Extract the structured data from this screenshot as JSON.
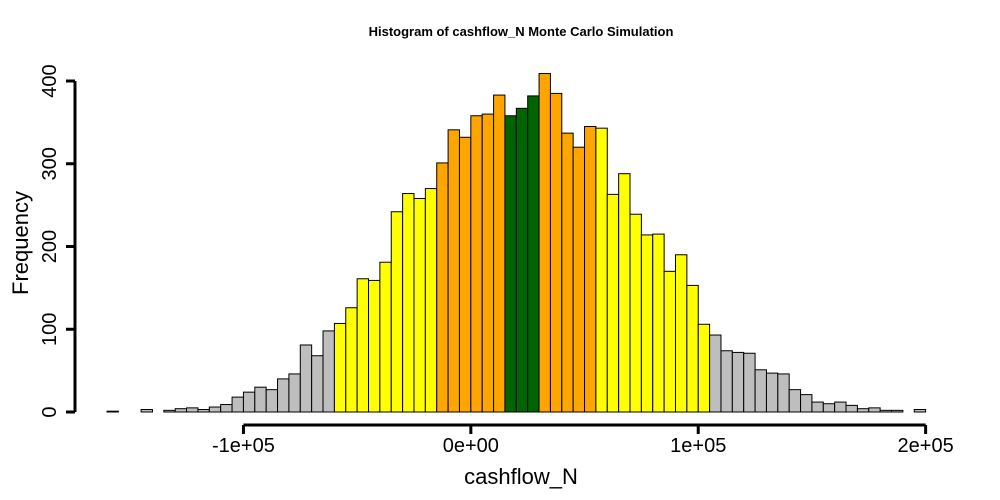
{
  "chart_data": {
    "type": "bar",
    "title": "Histogram of  cashflow_N  Monte Carlo Simulation",
    "xlabel": "cashflow_N",
    "ylabel": "Frequency",
    "x_range": [
      -160000,
      205000
    ],
    "y_range": [
      0,
      400
    ],
    "bin_width": 5000,
    "bin_start": -160000,
    "x_ticks": [
      {
        "value": -100000,
        "label": "-1e+05"
      },
      {
        "value": 0,
        "label": "0e+00"
      },
      {
        "value": 100000,
        "label": "1e+05"
      },
      {
        "value": 200000,
        "label": "2e+05"
      }
    ],
    "y_ticks": [
      {
        "value": 0,
        "label": "0"
      },
      {
        "value": 100,
        "label": "100"
      },
      {
        "value": 200,
        "label": "200"
      },
      {
        "value": 300,
        "label": "300"
      },
      {
        "value": 400,
        "label": "400"
      }
    ],
    "band_colors": {
      "tail": "#bebebe",
      "outer": "#ffff00",
      "inner": "#ffa500",
      "center": "#006400"
    },
    "bars": [
      {
        "x0": -160000,
        "count": 1,
        "band": "tail"
      },
      {
        "x0": -155000,
        "count": 0,
        "band": "tail"
      },
      {
        "x0": -150000,
        "count": 0,
        "band": "tail"
      },
      {
        "x0": -145000,
        "count": 3,
        "band": "tail"
      },
      {
        "x0": -140000,
        "count": 0,
        "band": "tail"
      },
      {
        "x0": -135000,
        "count": 2,
        "band": "tail"
      },
      {
        "x0": -130000,
        "count": 4,
        "band": "tail"
      },
      {
        "x0": -125000,
        "count": 5,
        "band": "tail"
      },
      {
        "x0": -120000,
        "count": 3,
        "band": "tail"
      },
      {
        "x0": -115000,
        "count": 6,
        "band": "tail"
      },
      {
        "x0": -110000,
        "count": 9,
        "band": "tail"
      },
      {
        "x0": -105000,
        "count": 18,
        "band": "tail"
      },
      {
        "x0": -100000,
        "count": 24,
        "band": "tail"
      },
      {
        "x0": -95000,
        "count": 30,
        "band": "tail"
      },
      {
        "x0": -90000,
        "count": 27,
        "band": "tail"
      },
      {
        "x0": -85000,
        "count": 40,
        "band": "tail"
      },
      {
        "x0": -80000,
        "count": 46,
        "band": "tail"
      },
      {
        "x0": -75000,
        "count": 81,
        "band": "tail"
      },
      {
        "x0": -70000,
        "count": 68,
        "band": "tail"
      },
      {
        "x0": -65000,
        "count": 98,
        "band": "tail"
      },
      {
        "x0": -60000,
        "count": 107,
        "band": "outer"
      },
      {
        "x0": -55000,
        "count": 126,
        "band": "outer"
      },
      {
        "x0": -50000,
        "count": 161,
        "band": "outer"
      },
      {
        "x0": -45000,
        "count": 159,
        "band": "outer"
      },
      {
        "x0": -40000,
        "count": 181,
        "band": "outer"
      },
      {
        "x0": -35000,
        "count": 242,
        "band": "outer"
      },
      {
        "x0": -30000,
        "count": 264,
        "band": "outer"
      },
      {
        "x0": -25000,
        "count": 258,
        "band": "outer"
      },
      {
        "x0": -20000,
        "count": 270,
        "band": "outer"
      },
      {
        "x0": -15000,
        "count": 301,
        "band": "inner"
      },
      {
        "x0": -10000,
        "count": 341,
        "band": "inner"
      },
      {
        "x0": -5000,
        "count": 332,
        "band": "inner"
      },
      {
        "x0": 0,
        "count": 358,
        "band": "inner"
      },
      {
        "x0": 5000,
        "count": 360,
        "band": "inner"
      },
      {
        "x0": 10000,
        "count": 383,
        "band": "inner"
      },
      {
        "x0": 15000,
        "count": 358,
        "band": "center"
      },
      {
        "x0": 20000,
        "count": 367,
        "band": "center"
      },
      {
        "x0": 25000,
        "count": 382,
        "band": "center"
      },
      {
        "x0": 30000,
        "count": 409,
        "band": "inner"
      },
      {
        "x0": 35000,
        "count": 385,
        "band": "inner"
      },
      {
        "x0": 40000,
        "count": 337,
        "band": "inner"
      },
      {
        "x0": 45000,
        "count": 320,
        "band": "inner"
      },
      {
        "x0": 50000,
        "count": 345,
        "band": "inner"
      },
      {
        "x0": 55000,
        "count": 343,
        "band": "outer"
      },
      {
        "x0": 60000,
        "count": 263,
        "band": "outer"
      },
      {
        "x0": 65000,
        "count": 288,
        "band": "outer"
      },
      {
        "x0": 70000,
        "count": 239,
        "band": "outer"
      },
      {
        "x0": 75000,
        "count": 214,
        "band": "outer"
      },
      {
        "x0": 80000,
        "count": 215,
        "band": "outer"
      },
      {
        "x0": 85000,
        "count": 170,
        "band": "outer"
      },
      {
        "x0": 90000,
        "count": 190,
        "band": "outer"
      },
      {
        "x0": 95000,
        "count": 153,
        "band": "outer"
      },
      {
        "x0": 100000,
        "count": 106,
        "band": "outer"
      },
      {
        "x0": 105000,
        "count": 93,
        "band": "tail"
      },
      {
        "x0": 110000,
        "count": 74,
        "band": "tail"
      },
      {
        "x0": 115000,
        "count": 72,
        "band": "tail"
      },
      {
        "x0": 120000,
        "count": 71,
        "band": "tail"
      },
      {
        "x0": 125000,
        "count": 51,
        "band": "tail"
      },
      {
        "x0": 130000,
        "count": 47,
        "band": "tail"
      },
      {
        "x0": 135000,
        "count": 46,
        "band": "tail"
      },
      {
        "x0": 140000,
        "count": 27,
        "band": "tail"
      },
      {
        "x0": 145000,
        "count": 21,
        "band": "tail"
      },
      {
        "x0": 150000,
        "count": 12,
        "band": "tail"
      },
      {
        "x0": 155000,
        "count": 10,
        "band": "tail"
      },
      {
        "x0": 160000,
        "count": 12,
        "band": "tail"
      },
      {
        "x0": 165000,
        "count": 8,
        "band": "tail"
      },
      {
        "x0": 170000,
        "count": 4,
        "band": "tail"
      },
      {
        "x0": 175000,
        "count": 5,
        "band": "tail"
      },
      {
        "x0": 180000,
        "count": 2,
        "band": "tail"
      },
      {
        "x0": 185000,
        "count": 2,
        "band": "tail"
      },
      {
        "x0": 190000,
        "count": 0,
        "band": "tail"
      },
      {
        "x0": 195000,
        "count": 3,
        "band": "tail"
      }
    ]
  }
}
